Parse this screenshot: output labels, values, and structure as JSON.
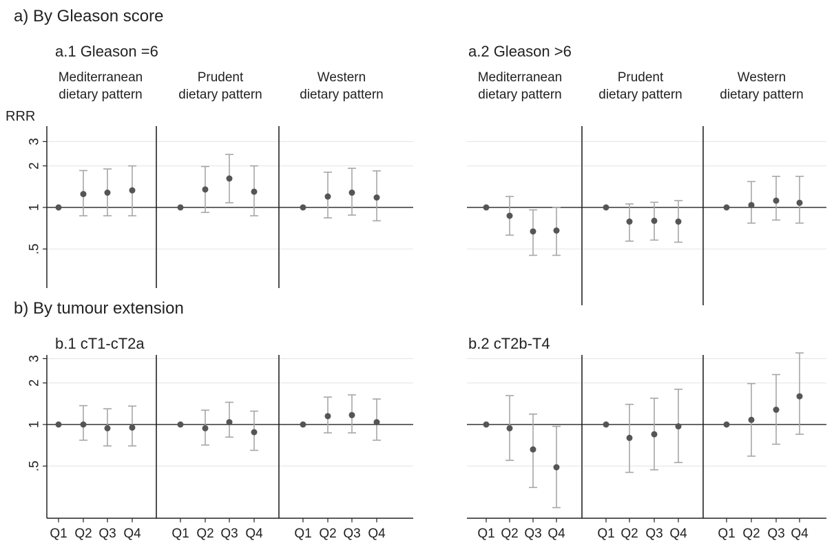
{
  "headings": {
    "a": "a)  By Gleason score",
    "b": "b)  By tumour extension",
    "a1": "a.1  Gleason =6",
    "a2": "a.2  Gleason >6",
    "b1": "b.1  cT1-cT2a",
    "b2": "b.2  cT2b-T4"
  },
  "y_axis_title": "RRR",
  "groups": [
    "Mediterranean\ndietary pattern",
    "Prudent\ndietary pattern",
    "Western\ndietary pattern"
  ],
  "quartile_labels": [
    "Q1",
    "Q2",
    "Q3",
    "Q4"
  ],
  "y_tick_labels": [
    "3",
    "2",
    "1",
    ".5"
  ],
  "colors": {
    "marker": "#555555",
    "ci": "#a6a6a6",
    "refline": "#333333",
    "grid": "#e3e3e3",
    "axis": "#222222"
  },
  "chart_data": [
    {
      "type": "scatter",
      "panel": "a.1",
      "title": "a.1  Gleason =6",
      "ylabel": "RRR",
      "yscale": "log",
      "ylim": [
        0.25,
        3.3
      ],
      "yticks": [
        0.5,
        1,
        2,
        3
      ],
      "reference_line": 1,
      "grid": true,
      "groups": [
        {
          "name": "Mediterranean dietary pattern",
          "categories": [
            "Q1",
            "Q2",
            "Q3",
            "Q4"
          ],
          "values": [
            1,
            1.25,
            1.28,
            1.33
          ],
          "ci_low": [
            null,
            0.87,
            0.87,
            0.87
          ],
          "ci_high": [
            null,
            1.85,
            1.9,
            2.0
          ]
        },
        {
          "name": "Prudent dietary pattern",
          "categories": [
            "Q1",
            "Q2",
            "Q3",
            "Q4"
          ],
          "values": [
            1,
            1.35,
            1.62,
            1.3
          ],
          "ci_low": [
            null,
            0.92,
            1.08,
            0.87
          ],
          "ci_high": [
            null,
            1.98,
            2.42,
            2.0
          ]
        },
        {
          "name": "Western dietary pattern",
          "categories": [
            "Q1",
            "Q2",
            "Q3",
            "Q4"
          ],
          "values": [
            1,
            1.2,
            1.28,
            1.18
          ],
          "ci_low": [
            null,
            0.84,
            0.88,
            0.8
          ],
          "ci_high": [
            null,
            1.8,
            1.92,
            1.84
          ]
        }
      ]
    },
    {
      "type": "scatter",
      "panel": "a.2",
      "title": "a.2  Gleason >6",
      "ylabel": "RRR",
      "yscale": "log",
      "ylim": [
        0.25,
        3.3
      ],
      "yticks": [
        0.5,
        1,
        2,
        3
      ],
      "reference_line": 1,
      "grid": true,
      "groups": [
        {
          "name": "Mediterranean dietary pattern",
          "categories": [
            "Q1",
            "Q2",
            "Q3",
            "Q4"
          ],
          "values": [
            1,
            0.87,
            0.67,
            0.68
          ],
          "ci_low": [
            null,
            0.63,
            0.45,
            0.45
          ],
          "ci_high": [
            null,
            1.2,
            0.96,
            1.0
          ]
        },
        {
          "name": "Prudent dietary pattern",
          "categories": [
            "Q1",
            "Q2",
            "Q3",
            "Q4"
          ],
          "values": [
            1,
            0.79,
            0.8,
            0.79
          ],
          "ci_low": [
            null,
            0.57,
            0.58,
            0.56
          ],
          "ci_high": [
            null,
            1.06,
            1.09,
            1.12
          ]
        },
        {
          "name": "Western dietary pattern",
          "categories": [
            "Q1",
            "Q2",
            "Q3",
            "Q4"
          ],
          "values": [
            1,
            1.04,
            1.12,
            1.08
          ],
          "ci_low": [
            null,
            0.77,
            0.81,
            0.77
          ],
          "ci_high": [
            null,
            1.54,
            1.68,
            1.68
          ]
        }
      ]
    },
    {
      "type": "scatter",
      "panel": "b.1",
      "title": "b.1  cT1-cT2a",
      "ylabel": "RRR",
      "yscale": "log",
      "ylim": [
        0.25,
        3.3
      ],
      "yticks": [
        0.5,
        1,
        2,
        3
      ],
      "reference_line": 1,
      "grid": true,
      "groups": [
        {
          "name": "Mediterranean dietary pattern",
          "categories": [
            "Q1",
            "Q2",
            "Q3",
            "Q4"
          ],
          "values": [
            1,
            1.0,
            0.94,
            0.95
          ],
          "ci_low": [
            null,
            0.77,
            0.7,
            0.7
          ],
          "ci_high": [
            null,
            1.37,
            1.3,
            1.36
          ]
        },
        {
          "name": "Prudent dietary pattern",
          "categories": [
            "Q1",
            "Q2",
            "Q3",
            "Q4"
          ],
          "values": [
            1,
            0.94,
            1.04,
            0.88
          ],
          "ci_low": [
            null,
            0.71,
            0.81,
            0.65
          ],
          "ci_high": [
            null,
            1.27,
            1.45,
            1.25
          ]
        },
        {
          "name": "Western dietary pattern",
          "categories": [
            "Q1",
            "Q2",
            "Q3",
            "Q4"
          ],
          "values": [
            1,
            1.15,
            1.17,
            1.04
          ],
          "ci_low": [
            null,
            0.87,
            0.87,
            0.77
          ],
          "ci_high": [
            null,
            1.58,
            1.64,
            1.53
          ]
        }
      ]
    },
    {
      "type": "scatter",
      "panel": "b.2",
      "title": "b.2  cT2b-T4",
      "ylabel": "RRR",
      "yscale": "log",
      "ylim": [
        0.25,
        3.3
      ],
      "yticks": [
        0.5,
        1,
        2,
        3
      ],
      "reference_line": 1,
      "grid": true,
      "groups": [
        {
          "name": "Mediterranean dietary pattern",
          "categories": [
            "Q1",
            "Q2",
            "Q3",
            "Q4"
          ],
          "values": [
            1,
            0.94,
            0.66,
            0.49
          ],
          "ci_low": [
            null,
            0.55,
            0.35,
            0.25
          ],
          "ci_high": [
            null,
            1.62,
            1.19,
            0.97
          ]
        },
        {
          "name": "Prudent dietary pattern",
          "categories": [
            "Q1",
            "Q2",
            "Q3",
            "Q4"
          ],
          "values": [
            1,
            0.8,
            0.85,
            0.97
          ],
          "ci_low": [
            null,
            0.45,
            0.47,
            0.53
          ],
          "ci_high": [
            null,
            1.4,
            1.55,
            1.8
          ]
        },
        {
          "name": "Western dietary pattern",
          "categories": [
            "Q1",
            "Q2",
            "Q3",
            "Q4"
          ],
          "values": [
            1,
            1.08,
            1.28,
            1.6
          ],
          "ci_low": [
            null,
            0.59,
            0.72,
            0.85
          ],
          "ci_high": [
            null,
            1.98,
            2.3,
            3.3
          ]
        }
      ]
    }
  ]
}
